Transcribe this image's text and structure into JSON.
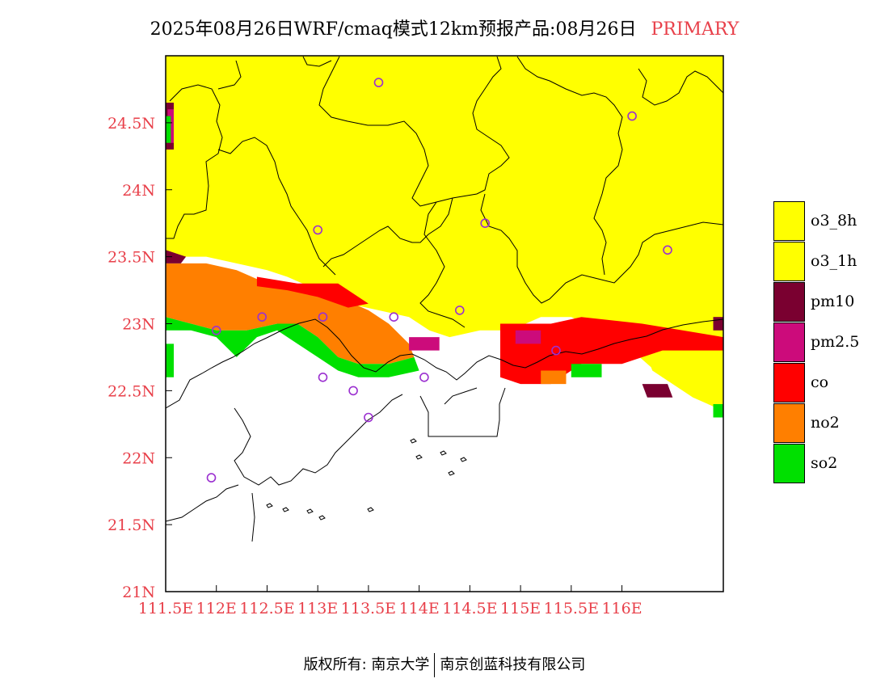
{
  "title": {
    "main": "2025年08月26日WRF/cmaq模式12km预报产品:08月26日",
    "tag": "PRIMARY"
  },
  "colors": {
    "o3_8h": "#ffff00",
    "o3_1h": "#ffff00",
    "pm10": "#7a0030",
    "pm25": "#cc0b7b",
    "co": "#ff0000",
    "no2": "#ff7f00",
    "so2": "#00e000",
    "axis_label": "#e8404a",
    "station": "#9b30d0"
  },
  "legend": [
    {
      "label": "o3_8h",
      "color": "#ffff00"
    },
    {
      "label": "o3_1h",
      "color": "#ffff00"
    },
    {
      "label": "pm10",
      "color": "#7a0030"
    },
    {
      "label": "pm2.5",
      "color": "#cc0b7b"
    },
    {
      "label": "co",
      "color": "#ff0000"
    },
    {
      "label": "no2",
      "color": "#ff7f00"
    },
    {
      "label": "so2",
      "color": "#00e000"
    }
  ],
  "footer": {
    "left": "版权所有: 南京大学",
    "right": "南京创蓝科技有限公司"
  },
  "chart_data": {
    "type": "heatmap",
    "title": "2025年08月26日WRF/cmaq模式12km预报产品:08月26日",
    "xlabel": "",
    "ylabel": "",
    "xlim": [
      111.5,
      117.0
    ],
    "ylim": [
      21.0,
      25.0
    ],
    "x_ticks": [
      {
        "value": 111.5,
        "label": "111.5E"
      },
      {
        "value": 112.0,
        "label": "112E"
      },
      {
        "value": 112.5,
        "label": "112.5E"
      },
      {
        "value": 113.0,
        "label": "113E"
      },
      {
        "value": 113.5,
        "label": "113.5E"
      },
      {
        "value": 114.0,
        "label": "114E"
      },
      {
        "value": 114.5,
        "label": "114.5E"
      },
      {
        "value": 115.0,
        "label": "115E"
      },
      {
        "value": 115.5,
        "label": "115.5E"
      },
      {
        "value": 116.0,
        "label": "116E"
      }
    ],
    "y_ticks": [
      {
        "value": 21.0,
        "label": "21N"
      },
      {
        "value": 21.5,
        "label": "21.5N"
      },
      {
        "value": 22.0,
        "label": "22N"
      },
      {
        "value": 22.5,
        "label": "22.5N"
      },
      {
        "value": 23.0,
        "label": "23N"
      },
      {
        "value": 23.5,
        "label": "23.5N"
      },
      {
        "value": 24.0,
        "label": "24N"
      },
      {
        "value": 24.5,
        "label": "24.5N"
      }
    ],
    "categories": [
      "o3_8h",
      "o3_1h",
      "pm10",
      "pm2.5",
      "co",
      "no2",
      "so2"
    ],
    "regions": [
      {
        "pollutant": "o3_8h",
        "points": [
          [
            111.5,
            25.0
          ],
          [
            117.0,
            25.0
          ],
          [
            117.0,
            22.35
          ],
          [
            116.85,
            22.4
          ],
          [
            116.7,
            22.5
          ],
          [
            116.4,
            22.6
          ],
          [
            116.1,
            22.8
          ],
          [
            115.8,
            22.95
          ],
          [
            115.5,
            23.05
          ],
          [
            115.2,
            23.05
          ],
          [
            114.9,
            22.95
          ],
          [
            114.6,
            22.95
          ],
          [
            114.3,
            22.9
          ],
          [
            114.1,
            22.95
          ],
          [
            113.9,
            23.05
          ],
          [
            113.6,
            23.1
          ],
          [
            113.3,
            23.15
          ],
          [
            113.0,
            23.25
          ],
          [
            112.7,
            23.35
          ],
          [
            112.5,
            23.4
          ],
          [
            112.2,
            23.45
          ],
          [
            111.9,
            23.5
          ],
          [
            111.5,
            23.5
          ]
        ]
      },
      {
        "pollutant": "o3_8h",
        "points": [
          [
            116.2,
            22.85
          ],
          [
            117.0,
            22.8
          ],
          [
            117.0,
            22.35
          ],
          [
            116.85,
            22.4
          ],
          [
            116.7,
            22.45
          ],
          [
            116.5,
            22.55
          ],
          [
            116.3,
            22.65
          ]
        ]
      },
      {
        "pollutant": "no2",
        "points": [
          [
            111.5,
            23.45
          ],
          [
            111.9,
            23.45
          ],
          [
            112.2,
            23.4
          ],
          [
            112.5,
            23.3
          ],
          [
            112.9,
            23.25
          ],
          [
            113.2,
            23.2
          ],
          [
            113.5,
            23.1
          ],
          [
            113.7,
            23.0
          ],
          [
            113.9,
            22.85
          ],
          [
            113.95,
            22.75
          ],
          [
            113.7,
            22.7
          ],
          [
            113.4,
            22.7
          ],
          [
            113.2,
            22.75
          ],
          [
            113.0,
            22.9
          ],
          [
            112.8,
            23.0
          ],
          [
            112.6,
            23.0
          ],
          [
            112.3,
            22.95
          ],
          [
            112.0,
            22.95
          ],
          [
            111.75,
            23.0
          ],
          [
            111.5,
            23.05
          ]
        ]
      },
      {
        "pollutant": "so2",
        "points": [
          [
            111.5,
            23.05
          ],
          [
            111.75,
            23.0
          ],
          [
            112.0,
            22.95
          ],
          [
            112.3,
            22.95
          ],
          [
            112.6,
            23.0
          ],
          [
            112.8,
            23.0
          ],
          [
            113.0,
            22.9
          ],
          [
            113.2,
            22.75
          ],
          [
            113.4,
            22.7
          ],
          [
            113.7,
            22.7
          ],
          [
            113.95,
            22.75
          ],
          [
            114.0,
            22.65
          ],
          [
            113.7,
            22.6
          ],
          [
            113.4,
            22.6
          ],
          [
            113.2,
            22.65
          ],
          [
            113.0,
            22.75
          ],
          [
            112.8,
            22.85
          ],
          [
            112.6,
            22.95
          ],
          [
            112.4,
            22.9
          ],
          [
            112.2,
            22.75
          ],
          [
            112.0,
            22.9
          ],
          [
            111.75,
            22.95
          ],
          [
            111.5,
            22.95
          ]
        ]
      },
      {
        "pollutant": "so2",
        "points": [
          [
            111.5,
            22.85
          ],
          [
            111.58,
            22.85
          ],
          [
            111.58,
            22.6
          ],
          [
            111.5,
            22.6
          ]
        ]
      },
      {
        "pollutant": "co",
        "points": [
          [
            112.4,
            23.35
          ],
          [
            112.8,
            23.3
          ],
          [
            113.2,
            23.3
          ],
          [
            113.5,
            23.15
          ],
          [
            113.3,
            23.12
          ],
          [
            113.0,
            23.2
          ],
          [
            112.7,
            23.25
          ],
          [
            112.4,
            23.28
          ]
        ]
      },
      {
        "pollutant": "pm10",
        "points": [
          [
            111.5,
            23.55
          ],
          [
            111.7,
            23.5
          ],
          [
            111.65,
            23.45
          ],
          [
            111.5,
            23.45
          ]
        ]
      },
      {
        "pollutant": "pm10",
        "points": [
          [
            111.5,
            24.65
          ],
          [
            111.58,
            24.65
          ],
          [
            111.58,
            24.3
          ],
          [
            111.5,
            24.3
          ]
        ]
      },
      {
        "pollutant": "pm25",
        "points": [
          [
            111.52,
            24.6
          ],
          [
            111.58,
            24.6
          ],
          [
            111.58,
            24.35
          ],
          [
            111.52,
            24.35
          ]
        ]
      },
      {
        "pollutant": "so2",
        "points": [
          [
            111.5,
            24.55
          ],
          [
            111.55,
            24.55
          ],
          [
            111.55,
            24.35
          ],
          [
            111.5,
            24.35
          ]
        ]
      },
      {
        "pollutant": "co",
        "points": [
          [
            114.8,
            23.0
          ],
          [
            115.3,
            23.0
          ],
          [
            115.6,
            23.05
          ],
          [
            116.2,
            23.0
          ],
          [
            116.6,
            22.95
          ],
          [
            117.0,
            22.9
          ],
          [
            117.0,
            22.8
          ],
          [
            116.4,
            22.8
          ],
          [
            116.0,
            22.7
          ],
          [
            115.6,
            22.7
          ],
          [
            115.3,
            22.55
          ],
          [
            115.0,
            22.55
          ],
          [
            114.8,
            22.6
          ]
        ]
      },
      {
        "pollutant": "pm10",
        "points": [
          [
            116.2,
            22.55
          ],
          [
            116.45,
            22.55
          ],
          [
            116.5,
            22.45
          ],
          [
            116.25,
            22.45
          ]
        ]
      },
      {
        "pollutant": "pm25",
        "points": [
          [
            114.95,
            22.95
          ],
          [
            115.2,
            22.95
          ],
          [
            115.2,
            22.85
          ],
          [
            114.95,
            22.85
          ]
        ]
      },
      {
        "pollutant": "pm25",
        "points": [
          [
            113.9,
            22.9
          ],
          [
            114.2,
            22.9
          ],
          [
            114.2,
            22.8
          ],
          [
            113.9,
            22.8
          ]
        ]
      },
      {
        "pollutant": "no2",
        "points": [
          [
            115.2,
            22.65
          ],
          [
            115.45,
            22.65
          ],
          [
            115.45,
            22.55
          ],
          [
            115.2,
            22.55
          ]
        ]
      },
      {
        "pollutant": "so2",
        "points": [
          [
            115.5,
            22.7
          ],
          [
            115.8,
            22.7
          ],
          [
            115.8,
            22.6
          ],
          [
            115.5,
            22.6
          ]
        ]
      },
      {
        "pollutant": "pm10",
        "points": [
          [
            116.9,
            23.05
          ],
          [
            117.0,
            23.05
          ],
          [
            117.0,
            22.95
          ],
          [
            116.9,
            22.95
          ]
        ]
      },
      {
        "pollutant": "so2",
        "points": [
          [
            116.9,
            22.4
          ],
          [
            117.0,
            22.4
          ],
          [
            117.0,
            22.3
          ],
          [
            116.9,
            22.3
          ]
        ]
      }
    ],
    "stations": [
      [
        113.6,
        24.8
      ],
      [
        116.1,
        24.55
      ],
      [
        113.0,
        23.7
      ],
      [
        114.65,
        23.75
      ],
      [
        116.45,
        23.55
      ],
      [
        112.45,
        23.05
      ],
      [
        113.05,
        23.05
      ],
      [
        113.75,
        23.05
      ],
      [
        114.4,
        23.1
      ],
      [
        112.0,
        22.95
      ],
      [
        115.35,
        22.8
      ],
      [
        113.05,
        22.6
      ],
      [
        113.35,
        22.5
      ],
      [
        114.05,
        22.6
      ],
      [
        113.5,
        22.3
      ],
      [
        111.95,
        21.85
      ]
    ]
  }
}
